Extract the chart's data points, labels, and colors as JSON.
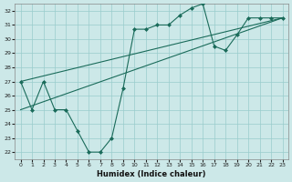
{
  "xlabel": "Humidex (Indice chaleur)",
  "xlim": [
    -0.5,
    23.5
  ],
  "ylim": [
    21.5,
    32.5
  ],
  "yticks": [
    22,
    23,
    24,
    25,
    26,
    27,
    28,
    29,
    30,
    31,
    32
  ],
  "xticks": [
    0,
    1,
    2,
    3,
    4,
    5,
    6,
    7,
    8,
    9,
    10,
    11,
    12,
    13,
    14,
    15,
    16,
    17,
    18,
    19,
    20,
    21,
    22,
    23
  ],
  "bg_color": "#cce8e8",
  "grid_color": "#99cccc",
  "line_color": "#1a6b5a",
  "series": [
    {
      "x": [
        0,
        1,
        2,
        3,
        4,
        5,
        6,
        7,
        8,
        9,
        10,
        11,
        12,
        13,
        14,
        15,
        16,
        17,
        18,
        19,
        20,
        21,
        22,
        23
      ],
      "y": [
        27,
        25,
        27,
        25,
        25,
        23.5,
        22,
        22,
        23,
        26.5,
        30.7,
        30.7,
        31,
        31,
        31.7,
        32.2,
        32.5,
        29.5,
        29.2,
        30.3,
        31.5,
        31.5,
        31.5,
        31.5
      ],
      "marker": "D",
      "markersize": 2.0,
      "linewidth": 0.8
    },
    {
      "x": [
        0,
        23
      ],
      "y": [
        27.0,
        31.5
      ],
      "marker": null,
      "linewidth": 0.8
    },
    {
      "x": [
        0,
        23
      ],
      "y": [
        25.0,
        31.5
      ],
      "marker": null,
      "linewidth": 0.8
    }
  ]
}
